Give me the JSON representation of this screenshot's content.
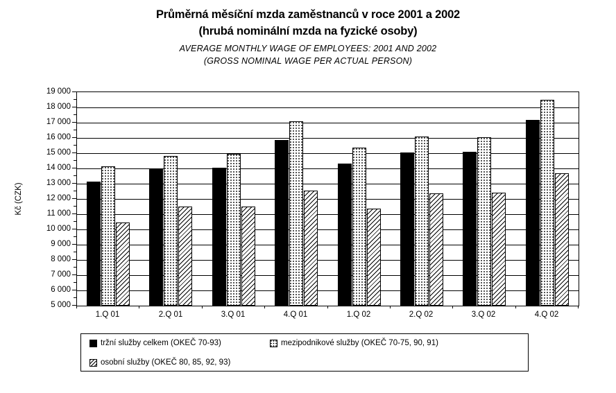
{
  "title": {
    "cz_line1": "Průměrná měsíční mzda zaměstnanců v roce 2001 a 2002",
    "cz_line2": "(hrubá nominální mzda na fyzické osoby)",
    "en_line1": "AVERAGE MONTHLY WAGE OF EMPLOYEES: 2001 AND 2002",
    "en_line2": "(GROSS NOMINAL WAGE PER ACTUAL PERSON)"
  },
  "chart_data": {
    "type": "bar",
    "categories": [
      "1.Q 01",
      "2.Q 01",
      "3.Q 01",
      "4.Q 01",
      "1.Q 02",
      "2.Q 02",
      "3.Q 02",
      "4.Q 02"
    ],
    "series": [
      {
        "name": "tržní služby celkem (OKEČ 70-93)",
        "pattern": "solid-black",
        "values": [
          13150,
          13950,
          14050,
          15850,
          14300,
          15050,
          15100,
          17200
        ]
      },
      {
        "name": "mezipodnikové služby (OKEČ 70-75, 90, 91)",
        "pattern": "dotted",
        "values": [
          14150,
          14800,
          14950,
          17100,
          15350,
          16100,
          16050,
          18500
        ]
      },
      {
        "name": "osobní služby (OKEČ 80, 85, 92, 93)",
        "pattern": "diagonal-hatch",
        "values": [
          10450,
          11500,
          11500,
          12550,
          11350,
          12350,
          12400,
          13700
        ]
      }
    ],
    "ylabel": "Kč (CZK)",
    "ylim": [
      5000,
      19000
    ],
    "ytick_step": 1000,
    "ytick_labels_top_to_bottom": [
      "19 000",
      "18 000",
      "17 000",
      "16 000",
      "15 000",
      "14 000",
      "13 000",
      "12 000",
      "11 000",
      "10 000",
      "9 000",
      "8 000",
      "7 000",
      "6 000",
      "5 000"
    ],
    "minor_tick_step": 500,
    "grid": "horizontal-only",
    "legend_position": "bottom-boxed",
    "colors": {
      "foreground": "#000000",
      "background": "#ffffff"
    }
  }
}
